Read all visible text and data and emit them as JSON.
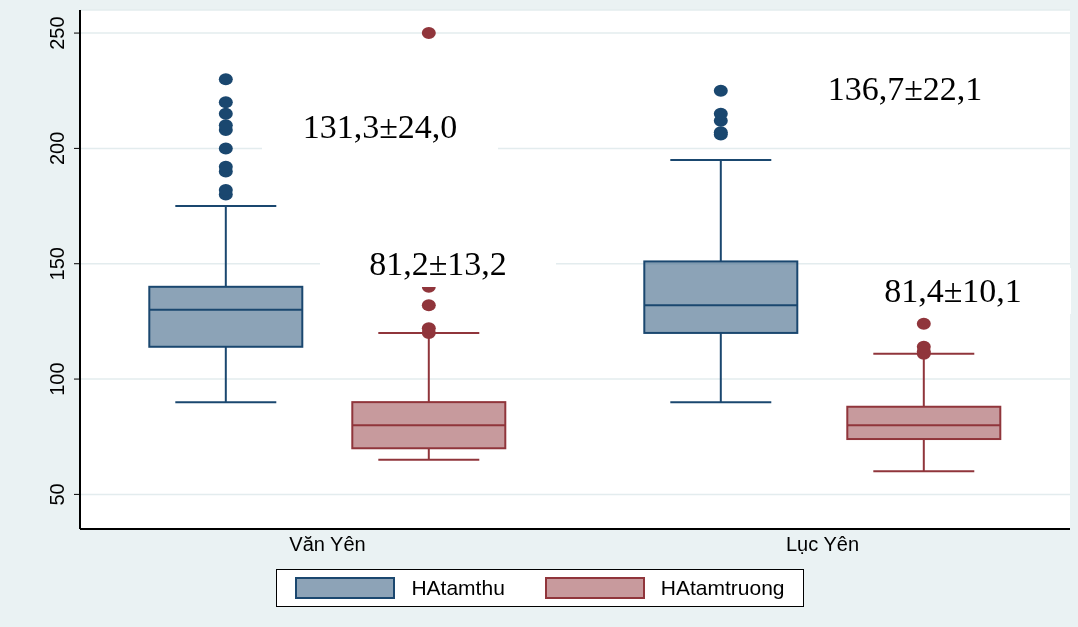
{
  "chart_data": {
    "type": "box",
    "categories": [
      "Văn Yên",
      "Lục Yên"
    ],
    "series": [
      {
        "name": "HAtamthu",
        "color": "#1a476f",
        "boxes": [
          {
            "low": 90,
            "q1": 114,
            "median": 130,
            "q3": 140,
            "high": 175,
            "outliers": [
              180,
              182,
              190,
              192,
              200,
              208,
              210,
              215,
              220,
              230
            ]
          },
          {
            "low": 90,
            "q1": 120,
            "median": 132,
            "q3": 151,
            "high": 195,
            "outliers": [
              206,
              207,
              212,
              215,
              225
            ]
          }
        ]
      },
      {
        "name": "HAtamtruong",
        "color": "#90353b",
        "boxes": [
          {
            "low": 65,
            "q1": 70,
            "median": 80,
            "q3": 90,
            "high": 120,
            "outliers": [
              120,
              122,
              132,
              140,
              250
            ]
          },
          {
            "low": 60,
            "q1": 74,
            "median": 80,
            "q3": 88,
            "high": 111,
            "outliers": [
              111,
              112,
              114,
              124
            ]
          }
        ]
      }
    ],
    "ylim": [
      35,
      260
    ],
    "yticks": [
      50,
      100,
      150,
      200,
      250
    ],
    "grid": "y",
    "legend": "bottom",
    "annotations": [
      "131,3±24,0",
      "81,2±13,2",
      "136,7±22,1",
      "81,4±10,1"
    ]
  }
}
